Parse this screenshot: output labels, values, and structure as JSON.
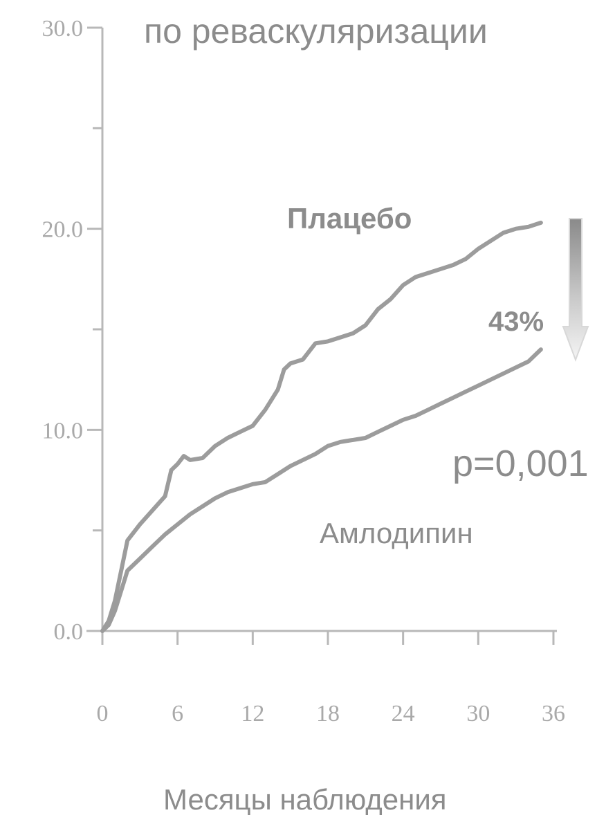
{
  "chart_data": {
    "type": "line",
    "title": "по реваскуляризации",
    "xlabel": "Месяцы наблюдения",
    "ylabel": "",
    "xlim": [
      0,
      36
    ],
    "ylim": [
      0,
      30
    ],
    "x_ticks": [
      "0",
      "6",
      "12",
      "18",
      "24",
      "30",
      "36"
    ],
    "y_ticks": [
      "0.0",
      "10.0",
      "20.0",
      "30.0"
    ],
    "y_tick_values": [
      0,
      10,
      20,
      30
    ],
    "y_minor_ticks": [
      5,
      15,
      25
    ],
    "grid": false,
    "series": [
      {
        "name": "Плацебо",
        "x": [
          0,
          0.5,
          1,
          1.5,
          2,
          3,
          4,
          5,
          5.5,
          6,
          6.5,
          7,
          8,
          9,
          10,
          11,
          12,
          13,
          14,
          14.5,
          15,
          16,
          17,
          18,
          19,
          20,
          21,
          22,
          23,
          24,
          25,
          26,
          27,
          28,
          29,
          30,
          31,
          32,
          33,
          34,
          35
        ],
        "values": [
          0,
          0.5,
          1.5,
          3,
          4.5,
          5.3,
          6,
          6.7,
          8,
          8.3,
          8.7,
          8.5,
          8.6,
          9.2,
          9.6,
          9.9,
          10.2,
          11,
          12,
          13,
          13.3,
          13.5,
          14.3,
          14.4,
          14.6,
          14.8,
          15.2,
          16,
          16.5,
          17.2,
          17.6,
          17.8,
          18,
          18.2,
          18.5,
          19,
          19.4,
          19.8,
          20,
          20.1,
          20.3
        ]
      },
      {
        "name": "Амлодипин",
        "x": [
          0,
          0.5,
          1,
          1.5,
          2,
          3,
          4,
          5,
          6,
          7,
          8,
          9,
          10,
          11,
          12,
          13,
          14,
          15,
          16,
          17,
          18,
          19,
          20,
          21,
          22,
          23,
          24,
          25,
          26,
          27,
          28,
          29,
          30,
          31,
          32,
          33,
          34,
          35
        ],
        "values": [
          0,
          0.3,
          1,
          2,
          3,
          3.6,
          4.2,
          4.8,
          5.3,
          5.8,
          6.2,
          6.6,
          6.9,
          7.1,
          7.3,
          7.4,
          7.8,
          8.2,
          8.5,
          8.8,
          9.2,
          9.4,
          9.5,
          9.6,
          9.9,
          10.2,
          10.5,
          10.7,
          11,
          11.3,
          11.6,
          11.9,
          12.2,
          12.5,
          12.8,
          13.1,
          13.4,
          14
        ]
      }
    ],
    "annotations": {
      "reduction": "43%",
      "p_value": "p=0,001"
    }
  }
}
